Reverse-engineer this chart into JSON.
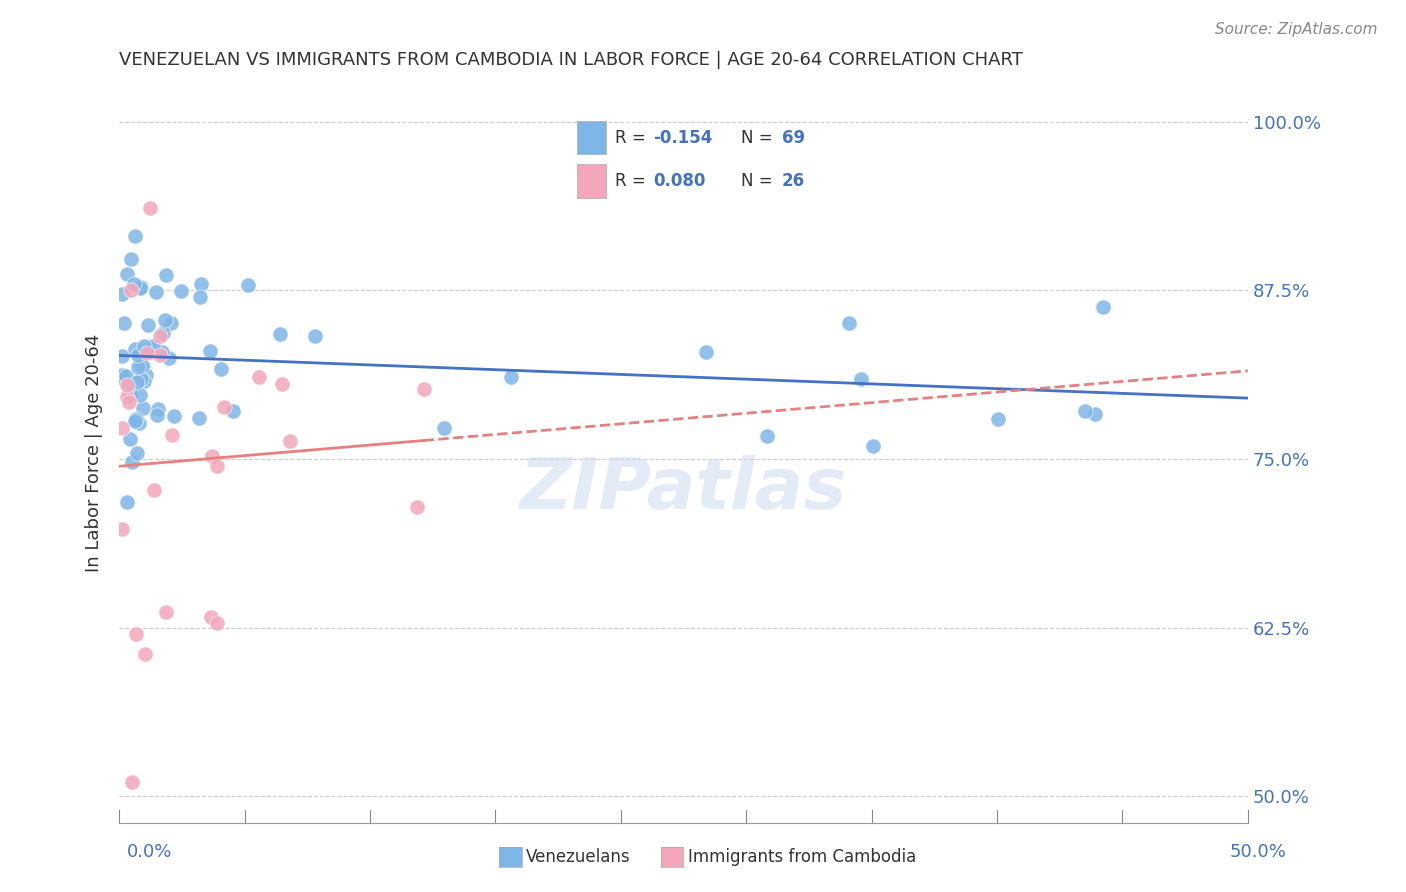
{
  "title": "VENEZUELAN VS IMMIGRANTS FROM CAMBODIA IN LABOR FORCE | AGE 20-64 CORRELATION CHART",
  "source": "Source: ZipAtlas.com",
  "ylabel": "In Labor Force | Age 20-64",
  "ytick_labels": [
    "100.0%",
    "87.5%",
    "75.0%",
    "62.5%",
    "50.0%"
  ],
  "ytick_values": [
    1.0,
    0.875,
    0.75,
    0.625,
    0.5
  ],
  "xmin": 0.0,
  "xmax": 0.5,
  "ymin": 0.48,
  "ymax": 1.03,
  "watermark": "ZIPatlas",
  "blue_color": "#7EB6E8",
  "pink_color": "#F4A7B9",
  "blue_line_color": "#4472C4",
  "pink_line_color": "#E88080",
  "grid_color": "#CCCCCC",
  "title_color": "#333333",
  "axis_label_color": "#4472C4",
  "watermark_color": "#C8D8F0"
}
